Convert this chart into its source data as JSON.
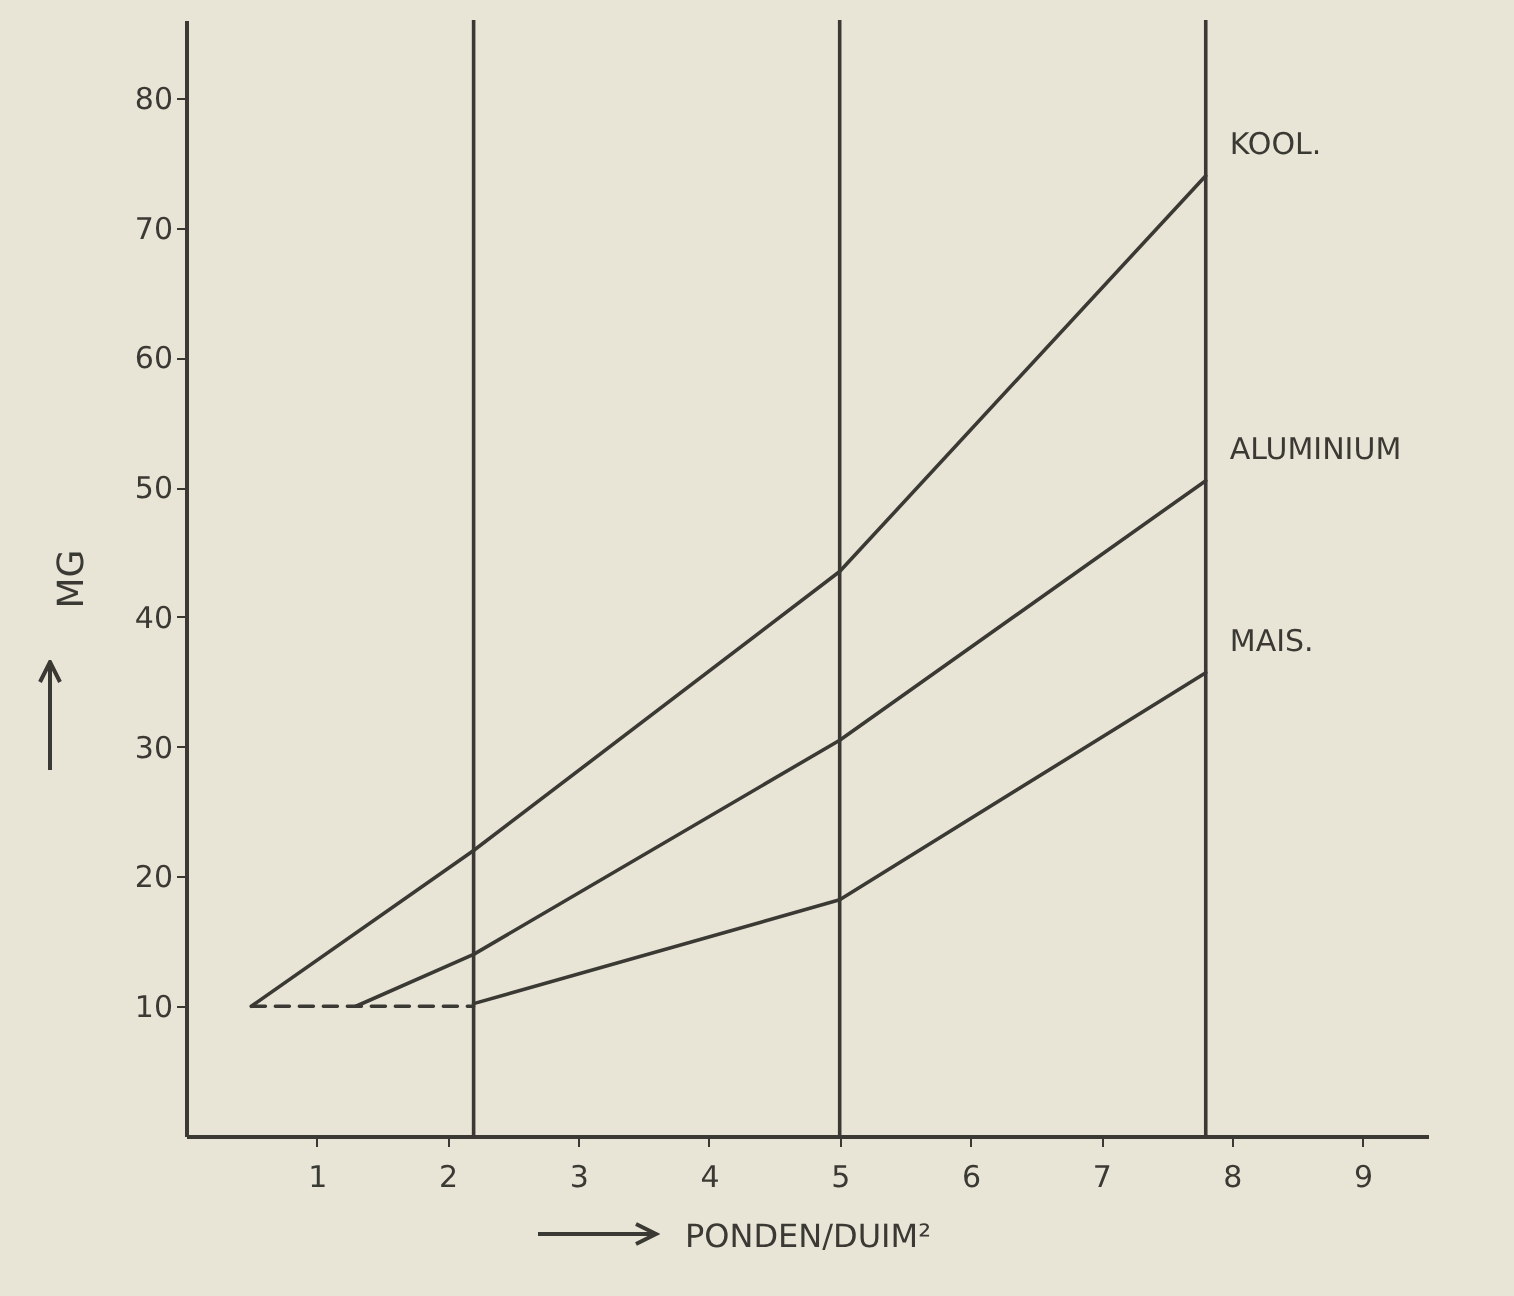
{
  "chart_data": {
    "type": "line",
    "xlabel": "PONDEN/DUIM²",
    "ylabel": "MG",
    "xlim": [
      0,
      9.5
    ],
    "ylim": [
      0,
      86
    ],
    "xticks": [
      1,
      2,
      3,
      4,
      5,
      6,
      7,
      8,
      9
    ],
    "yticks": [
      10,
      20,
      30,
      40,
      50,
      60,
      70,
      80
    ],
    "grid": false,
    "legend": false,
    "marker": "none",
    "series": [
      {
        "name": "KOOL.",
        "color": "#3a3934",
        "x": [
          0.5,
          2.2,
          5,
          7.8
        ],
        "values": [
          10,
          22,
          43.5,
          74
        ],
        "line_style": "solid"
      },
      {
        "name": "ALUMINIUM",
        "color": "#3a3934",
        "x": [
          1.3,
          2.2,
          5,
          7.8
        ],
        "values": [
          10,
          14,
          30.5,
          50.5
        ],
        "line_style": "solid"
      },
      {
        "name": "MAIS.",
        "color": "#3a3934",
        "x": [
          2.2,
          5,
          7.8
        ],
        "values": [
          10.2,
          18.2,
          35.7
        ],
        "line_style": "solid"
      },
      {
        "color": "#3a3934",
        "x": [
          0.5,
          2.2
        ],
        "values": [
          10,
          10
        ],
        "line_style": "dashed"
      }
    ],
    "ref_lines": [
      {
        "axis": "x",
        "value": 2.2,
        "color": "#3a3934"
      },
      {
        "axis": "x",
        "value": 5,
        "color": "#3a3934"
      },
      {
        "axis": "x",
        "value": 7.8,
        "color": "#3a3934"
      }
    ]
  }
}
